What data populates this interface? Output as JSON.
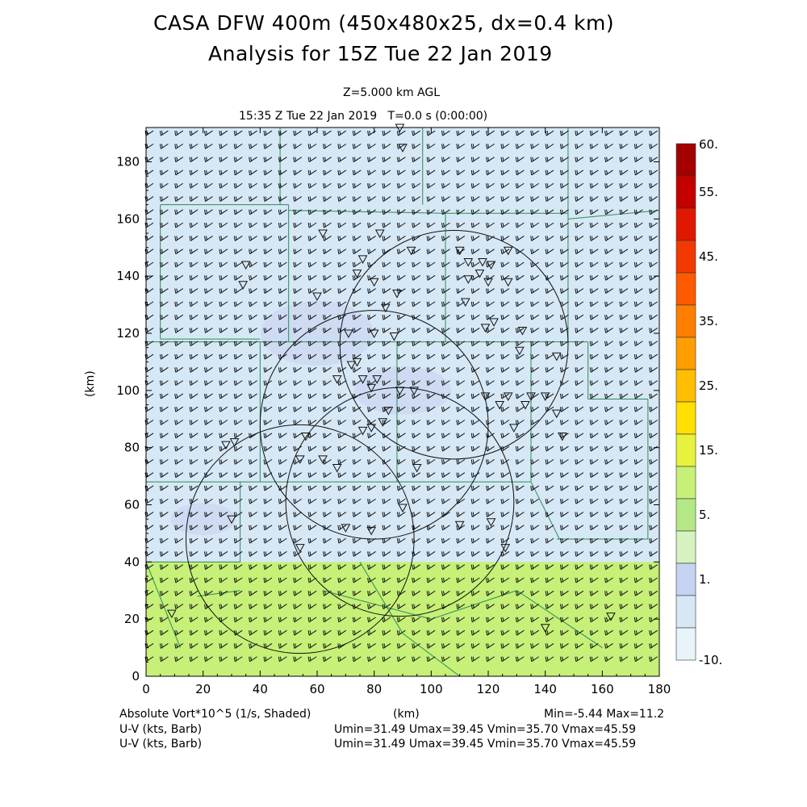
{
  "header": {
    "title_line1": "CASA DFW 400m (450x480x25, dx=0.4 km)",
    "title_line2": "Analysis for 15Z Tue 22 Jan 2019",
    "level": "Z=5.000 km AGL",
    "time": "15:35 Z Tue 22 Jan 2019   T=0.0 s (0:00:00)"
  },
  "footer": {
    "field_label": "Absolute Vort*10^5 (1/s, Shaded)",
    "axis_unit": "(km)",
    "minmax": "Min=-5.44 Max=11.2",
    "barb_line1_label": "U-V (kts, Barb)",
    "barb_line1_stats": "Umin=31.49 Umax=39.45 Vmin=35.70 Vmax=45.59",
    "barb_line2_label": "U-V (kts, Barb)",
    "barb_line2_stats": "Umin=31.49 Umax=39.45 Vmin=35.70 Vmax=45.59"
  },
  "chart_data": {
    "type": "heatmap",
    "x_range": [
      0,
      180
    ],
    "y_range": [
      0,
      192
    ],
    "x_ticks": [
      "0",
      "20",
      "40",
      "60",
      "80",
      "100",
      "120",
      "140",
      "160",
      "180"
    ],
    "y_ticks": [
      "0",
      "20",
      "40",
      "60",
      "80",
      "100",
      "120",
      "140",
      "160",
      "180"
    ],
    "ylabel": "(km)",
    "xlabel": "(km)",
    "colorbar": {
      "labels": [
        "60.",
        "55.",
        "45.",
        "35.",
        "25.",
        "15.",
        "5.",
        "1.",
        "-10."
      ],
      "colors": [
        "#a50000",
        "#c40000",
        "#e01800",
        "#f23a00",
        "#ff5a00",
        "#ff7e00",
        "#ff9e00",
        "#ffbe00",
        "#ffe000",
        "#e8f23c",
        "#c6f078",
        "#b4e886",
        "#d6f2c0",
        "#c6d2f2",
        "#d6e8f6",
        "#e8f4fa"
      ]
    },
    "shaded_regions": [
      {
        "name": "north",
        "y_from": 40,
        "y_to": 192,
        "color": "#d6e8f6"
      },
      {
        "name": "south",
        "y_from": 0,
        "y_to": 40,
        "color": "#c6f078"
      }
    ],
    "radar_rings": [
      {
        "cx": 54,
        "cy": 48,
        "r": 40
      },
      {
        "cx": 80,
        "cy": 88,
        "r": 40
      },
      {
        "cx": 108,
        "cy": 116,
        "r": 40
      },
      {
        "cx": 89,
        "cy": 61,
        "r": 40
      }
    ],
    "wind_barbs": {
      "u_min": 31.49,
      "u_max": 39.45,
      "v_min": 35.7,
      "v_max": 45.59,
      "units": "kts"
    },
    "min": -5.44,
    "max": 11.2
  }
}
